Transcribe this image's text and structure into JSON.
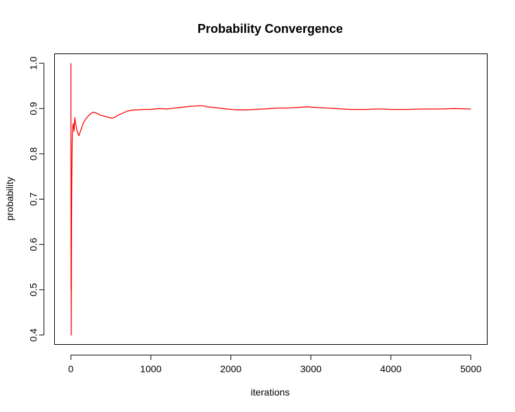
{
  "chart_data": {
    "type": "line",
    "title": "Probability Convergence",
    "xlabel": "iterations",
    "ylabel": "probability",
    "xlim": [
      -200,
      5200
    ],
    "ylim": [
      0.38,
      1.02
    ],
    "x_ticks": [
      0,
      1000,
      2000,
      3000,
      4000,
      5000
    ],
    "x_tick_labels": [
      "0",
      "1000",
      "2000",
      "3000",
      "4000",
      "5000"
    ],
    "y_ticks": [
      0.4,
      0.5,
      0.6,
      0.7,
      0.8,
      0.9,
      1.0
    ],
    "y_tick_labels": [
      "0.4",
      "0.5",
      "0.6",
      "0.7",
      "0.8",
      "0.9",
      "1.0"
    ],
    "grid": false,
    "legend": "none",
    "series": [
      {
        "color": "#ff0000",
        "x": [
          1,
          2,
          3,
          4,
          5,
          6,
          7,
          8,
          9,
          10,
          12,
          14,
          16,
          18,
          20,
          25,
          30,
          35,
          40,
          45,
          50,
          55,
          60,
          65,
          70,
          75,
          80,
          85,
          90,
          95,
          100,
          110,
          120,
          130,
          140,
          150,
          160,
          170,
          180,
          190,
          200,
          220,
          240,
          260,
          280,
          300,
          320,
          340,
          360,
          380,
          400,
          420,
          440,
          460,
          480,
          500,
          520,
          540,
          560,
          580,
          600,
          650,
          700,
          750,
          800,
          850,
          900,
          950,
          1000,
          1100,
          1200,
          1300,
          1400,
          1500,
          1600,
          1650,
          1700,
          1800,
          1900,
          2000,
          2100,
          2200,
          2300,
          2400,
          2500,
          2600,
          2700,
          2800,
          2900,
          2950,
          3000,
          3100,
          3200,
          3300,
          3400,
          3500,
          3600,
          3700,
          3800,
          3900,
          4000,
          4200,
          4400,
          4600,
          4800,
          5000
        ],
        "values": [
          1.0,
          0.5,
          0.667,
          0.5,
          0.4,
          0.5,
          0.571,
          0.625,
          0.667,
          0.7,
          0.75,
          0.786,
          0.812,
          0.833,
          0.85,
          0.86,
          0.867,
          0.857,
          0.85,
          0.867,
          0.88,
          0.873,
          0.867,
          0.862,
          0.857,
          0.853,
          0.85,
          0.847,
          0.844,
          0.842,
          0.84,
          0.845,
          0.85,
          0.855,
          0.86,
          0.865,
          0.87,
          0.872,
          0.875,
          0.878,
          0.88,
          0.884,
          0.887,
          0.89,
          0.892,
          0.891,
          0.89,
          0.888,
          0.886,
          0.885,
          0.884,
          0.883,
          0.882,
          0.881,
          0.88,
          0.879,
          0.879,
          0.88,
          0.882,
          0.884,
          0.886,
          0.89,
          0.894,
          0.896,
          0.897,
          0.897,
          0.898,
          0.898,
          0.898,
          0.9,
          0.899,
          0.901,
          0.903,
          0.905,
          0.906,
          0.906,
          0.904,
          0.902,
          0.9,
          0.898,
          0.897,
          0.897,
          0.898,
          0.899,
          0.9,
          0.901,
          0.901,
          0.902,
          0.903,
          0.904,
          0.903,
          0.902,
          0.901,
          0.9,
          0.899,
          0.898,
          0.898,
          0.898,
          0.899,
          0.899,
          0.898,
          0.898,
          0.899,
          0.899,
          0.9,
          0.899
        ]
      }
    ]
  }
}
